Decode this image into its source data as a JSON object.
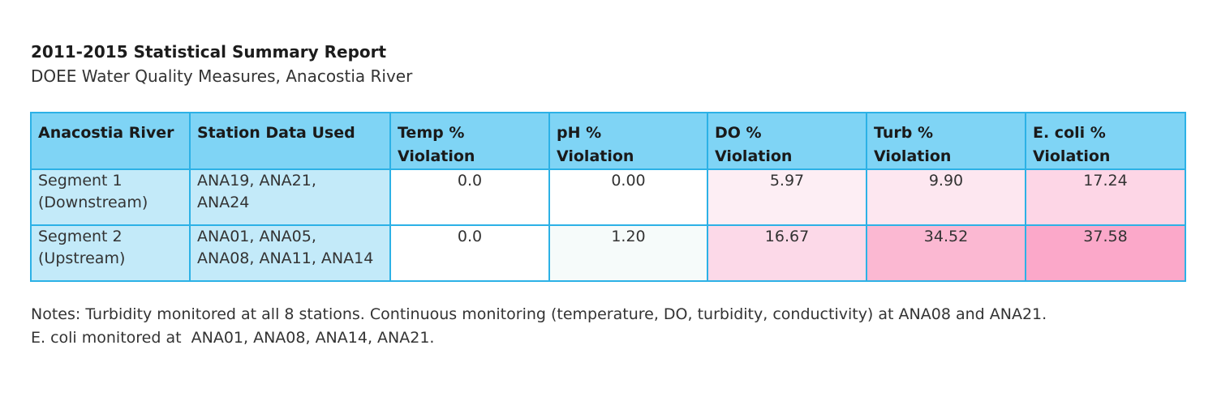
{
  "title": "2011-2015 Statistical Summary Report",
  "subtitle": "DOEE Water Quality Measures, Anacostia River",
  "table": {
    "headers": [
      [
        "Anacostia River"
      ],
      [
        "Station Data Used"
      ],
      [
        "Temp %",
        "Violation"
      ],
      [
        "pH %",
        "Violation"
      ],
      [
        "DO %",
        "Violation"
      ],
      [
        "Turb %",
        "Violation"
      ],
      [
        "E. coli %",
        "Violation"
      ]
    ],
    "rows": [
      {
        "segment": [
          "Segment 1",
          "(Downstream)"
        ],
        "stations": [
          "ANA19, ANA21,",
          "ANA24"
        ],
        "values": [
          {
            "text": "0.0",
            "color": "#ffffff"
          },
          {
            "text": "0.00",
            "color": "#ffffff"
          },
          {
            "text": "5.97",
            "color": "#fdeef4"
          },
          {
            "text": "9.90",
            "color": "#fde7f0"
          },
          {
            "text": "17.24",
            "color": "#fdd6e6"
          }
        ]
      },
      {
        "segment": [
          "Segment 2",
          "(Upstream)"
        ],
        "stations": [
          "ANA01, ANA05,",
          "ANA08, ANA11, ANA14"
        ],
        "values": [
          {
            "text": "0.0",
            "color": "#ffffff"
          },
          {
            "text": "1.20",
            "color": "#f6fbfa"
          },
          {
            "text": "16.67",
            "color": "#fcd9e8"
          },
          {
            "text": "34.52",
            "color": "#fbb8d2"
          },
          {
            "text": "37.58",
            "color": "#fba8c9"
          }
        ]
      }
    ]
  },
  "notes": [
    "Notes: Turbidity monitored at all 8 stations. Continuous monitoring (temperature, DO, turbidity, conductivity) at ANA08 and ANA21.",
    "E. coli monitored at  ANA01, ANA08, ANA14, ANA21."
  ]
}
